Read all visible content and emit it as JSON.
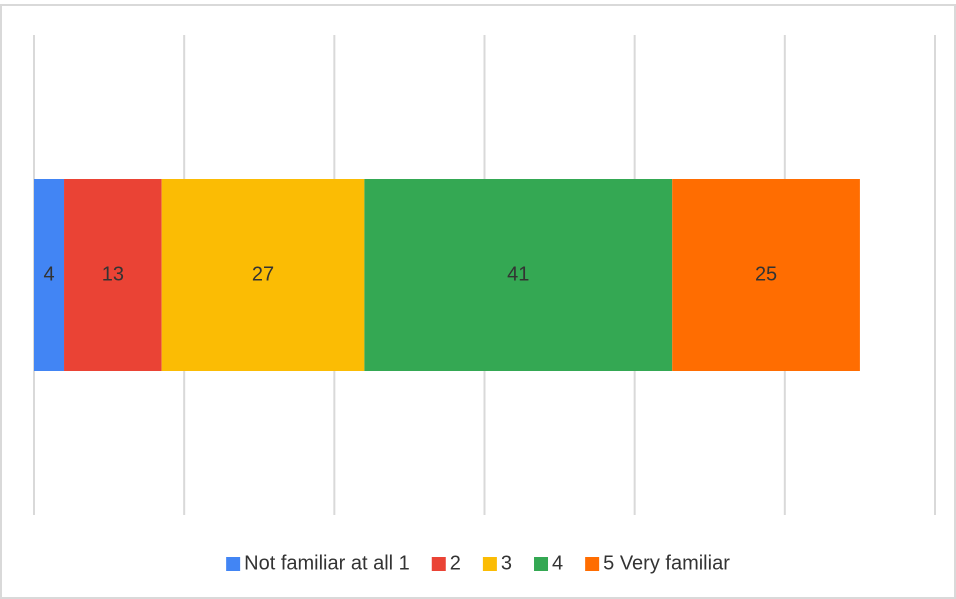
{
  "chart_data": {
    "type": "stacked_bar_horizontal",
    "categories": [
      null
    ],
    "series": [
      {
        "name": "Not familiar at all 1",
        "color": "#4285f4",
        "values": [
          4
        ]
      },
      {
        "name": "2",
        "color": "#ea4335",
        "values": [
          13
        ]
      },
      {
        "name": "3",
        "color": "#fbbc04",
        "values": [
          27
        ]
      },
      {
        "name": "4",
        "color": "#34a853",
        "values": [
          41
        ]
      },
      {
        "name": "5 Very familiar",
        "color": "#ff6d01",
        "values": [
          25
        ]
      }
    ],
    "xlim": [
      0,
      120
    ],
    "xticks": [
      0,
      20,
      40,
      60,
      80,
      100,
      120
    ],
    "grid": true,
    "legend": "bottom"
  }
}
